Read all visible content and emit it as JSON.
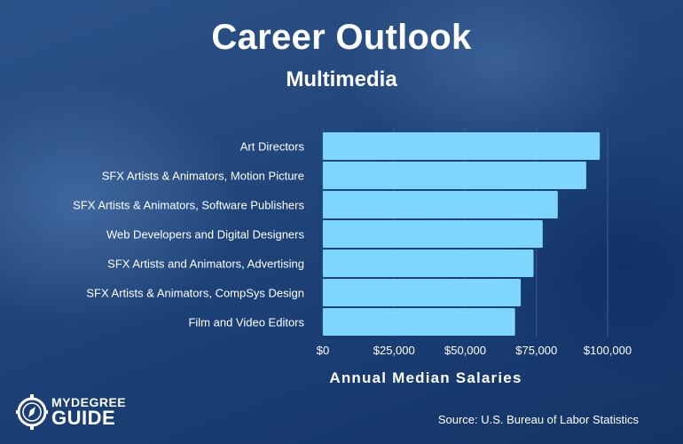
{
  "header": {
    "title": "Career Outlook",
    "subtitle": "Multimedia"
  },
  "logo": {
    "line1": "MYDEGREE",
    "line2": "GUIDE",
    "icon": "compass-icon"
  },
  "source": "Source: U.S. Bureau of Labor Statistics",
  "colors": {
    "bar": "#7fd6fd",
    "text": "#ffffff",
    "grid": "#3b5f90"
  },
  "chart_data": {
    "type": "bar",
    "orientation": "horizontal",
    "categories": [
      "Art Directors",
      "SFX Artists & Animators, Motion Picture",
      "SFX Artists & Animators, Software Publishers",
      "Web Developers and Digital Designers",
      "SFX Artists and Animators, Advertising",
      "SFX Artists & Animators, CompSys Design",
      "Film and Video Editors"
    ],
    "values": [
      97270,
      92500,
      82500,
      77200,
      74000,
      69500,
      67500
    ],
    "xlabel": "Annual Median Salaries",
    "ylabel": "",
    "xlim": [
      0,
      100000
    ],
    "xticks": [
      0,
      25000,
      50000,
      75000,
      100000
    ],
    "xtick_labels": [
      "$0",
      "$25,000",
      "$50,000",
      "$75,000",
      "$100,000"
    ],
    "grid": "vertical"
  }
}
